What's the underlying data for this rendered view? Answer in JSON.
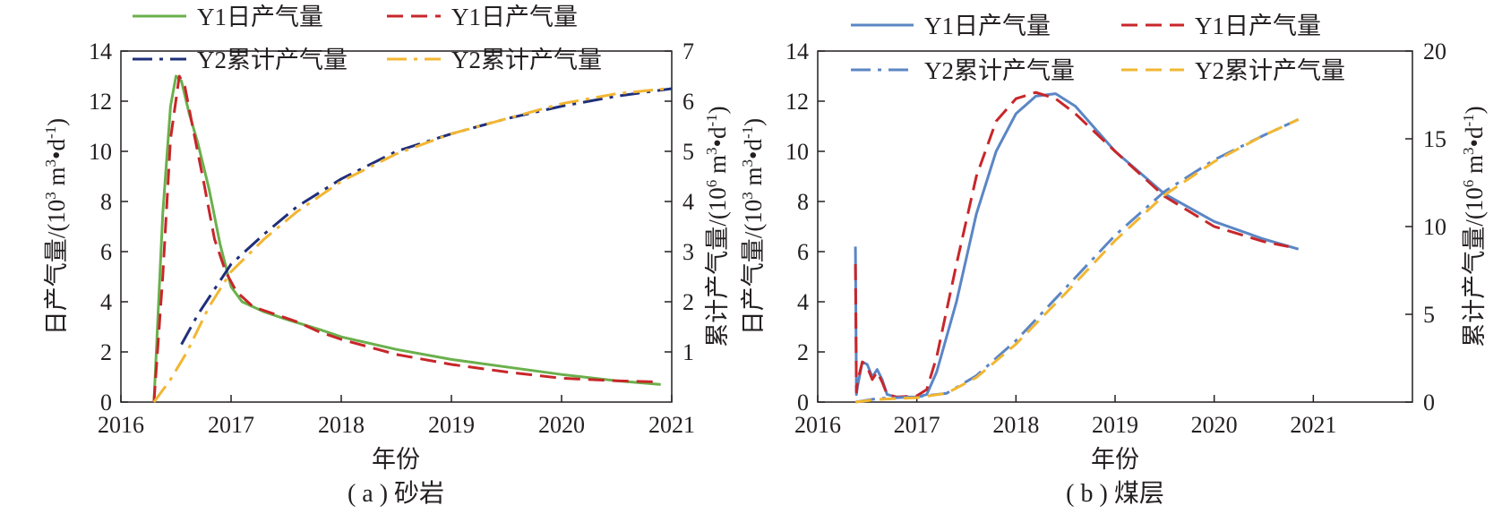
{
  "chart_data": [
    {
      "type": "line",
      "caption": "( a ) 砂岩",
      "xlabel": "年份",
      "ylabel_left_main": "日产气量/(10",
      "ylabel_left_sup": "3",
      "ylabel_left_mid": " m",
      "ylabel_left_sup2": "3",
      "ylabel_left_tail": "•d",
      "ylabel_left_sup3": "-1",
      "ylabel_left_end": ")",
      "ylabel_right_main": "累计产气量/(10",
      "ylabel_right_sup": "6",
      "ylabel_right_mid": " m",
      "ylabel_right_sup2": "3",
      "ylabel_right_tail": "•d",
      "ylabel_right_sup3": "-1",
      "ylabel_right_end": ")",
      "xlim": [
        2016,
        2021
      ],
      "ylim_left": [
        0,
        14
      ],
      "ylim_right": [
        0,
        7
      ],
      "x_ticks": [
        "2016",
        "2017",
        "2018",
        "2019",
        "2020",
        "2021"
      ],
      "y_left_ticks": [
        "0",
        "2",
        "4",
        "6",
        "8",
        "10",
        "12",
        "14"
      ],
      "y_right_ticks": [
        "1",
        "2",
        "3",
        "4",
        "5",
        "6",
        "7"
      ],
      "legend_placement": "top",
      "series": [
        {
          "name": "Y1日产气量",
          "axis": "left",
          "color": "#6ab04c",
          "dash": "solid",
          "x": [
            2016.3,
            2016.38,
            2016.45,
            2016.5,
            2016.55,
            2016.62,
            2016.7,
            2016.8,
            2016.9,
            2017.0,
            2017.1,
            2017.3,
            2017.5,
            2017.8,
            2018.0,
            2018.5,
            2019.0,
            2019.5,
            2020.0,
            2020.5,
            2020.9
          ],
          "y": [
            0,
            7.5,
            11.8,
            13.0,
            12.8,
            11.5,
            10.3,
            8.5,
            6.3,
            4.6,
            4.0,
            3.6,
            3.3,
            2.9,
            2.6,
            2.1,
            1.7,
            1.4,
            1.1,
            0.85,
            0.7
          ]
        },
        {
          "name": "Y1日产气量",
          "axis": "left",
          "color": "#c8262a",
          "dash": "dashed",
          "x": [
            2016.3,
            2016.38,
            2016.45,
            2016.53,
            2016.58,
            2016.65,
            2016.75,
            2016.85,
            2016.95,
            2017.05,
            2017.2,
            2017.4,
            2017.6,
            2017.8,
            2018.0,
            2018.5,
            2019.0,
            2019.5,
            2020.0,
            2020.5,
            2020.9
          ],
          "y": [
            0,
            5.0,
            10.5,
            13.0,
            12.6,
            11.0,
            8.8,
            6.5,
            5.2,
            4.4,
            3.8,
            3.5,
            3.2,
            2.8,
            2.5,
            1.9,
            1.5,
            1.2,
            0.95,
            0.85,
            0.8
          ]
        },
        {
          "name": "Y2累计产气量",
          "axis": "right",
          "color": "#1f2f7a",
          "dash": "dashdot",
          "x": [
            2016.55,
            2016.7,
            2016.85,
            2017.0,
            2017.3,
            2017.6,
            2018.0,
            2018.5,
            2019.0,
            2019.5,
            2020.0,
            2020.5,
            2021.0
          ],
          "y": [
            1.15,
            1.75,
            2.25,
            2.75,
            3.35,
            3.9,
            4.45,
            5.0,
            5.35,
            5.65,
            5.9,
            6.1,
            6.25
          ]
        },
        {
          "name": "Y2累计产气量",
          "axis": "right",
          "color": "#f2b632",
          "dash": "dashdot",
          "x": [
            2016.3,
            2016.45,
            2016.6,
            2016.8,
            2017.0,
            2017.3,
            2017.6,
            2018.0,
            2018.5,
            2019.0,
            2019.5,
            2020.0,
            2020.5,
            2020.95
          ],
          "y": [
            0,
            0.45,
            1.0,
            1.9,
            2.6,
            3.25,
            3.8,
            4.4,
            4.95,
            5.35,
            5.65,
            5.95,
            6.15,
            6.25
          ]
        }
      ]
    },
    {
      "type": "line",
      "caption": "( b ) 煤层",
      "xlabel": "年份",
      "ylabel_left_main": "日产气量/(10",
      "ylabel_left_sup": "3",
      "ylabel_left_mid": " m",
      "ylabel_left_sup2": "3",
      "ylabel_left_tail": "•d",
      "ylabel_left_sup3": "-1",
      "ylabel_left_end": ")",
      "ylabel_right_main": "累计产气量/(10",
      "ylabel_right_sup": "6",
      "ylabel_right_mid": " m",
      "ylabel_right_sup2": "3",
      "ylabel_right_tail": "•d",
      "ylabel_right_sup3": "-1",
      "ylabel_right_end": ")",
      "xlim": [
        2016,
        2022
      ],
      "ylim_left": [
        0,
        14
      ],
      "ylim_right": [
        0,
        20
      ],
      "x_ticks": [
        "2016",
        "2017",
        "2018",
        "2019",
        "2020",
        "2021"
      ],
      "y_left_ticks": [
        "0",
        "2",
        "4",
        "6",
        "8",
        "10",
        "12",
        "14"
      ],
      "y_right_ticks": [
        "0",
        "5",
        "10",
        "15",
        "20"
      ],
      "legend_placement": "top",
      "series": [
        {
          "name": "Y1日产气量",
          "axis": "left",
          "color": "#5b86c5",
          "dash": "solid",
          "x": [
            2016.38,
            2016.39,
            2016.4,
            2016.45,
            2016.5,
            2016.55,
            2016.6,
            2016.65,
            2016.7,
            2016.8,
            2017.0,
            2017.1,
            2017.2,
            2017.4,
            2017.6,
            2017.8,
            2018.0,
            2018.2,
            2018.4,
            2018.6,
            2019.0,
            2019.5,
            2020.0,
            2020.5,
            2020.85
          ],
          "y": [
            6.2,
            0.3,
            0.6,
            1.6,
            1.5,
            1.0,
            1.3,
            0.9,
            0.3,
            0.2,
            0.2,
            0.3,
            1.2,
            4.0,
            7.5,
            10.0,
            11.5,
            12.2,
            12.3,
            11.8,
            10.0,
            8.3,
            7.2,
            6.5,
            6.1
          ]
        },
        {
          "name": "Y1日产气量",
          "axis": "left",
          "color": "#c8262a",
          "dash": "dashed",
          "x": [
            2016.38,
            2016.39,
            2016.4,
            2016.45,
            2016.5,
            2016.55,
            2016.6,
            2016.65,
            2016.7,
            2016.8,
            2017.0,
            2017.1,
            2017.2,
            2017.4,
            2017.6,
            2017.8,
            2018.0,
            2018.2,
            2018.4,
            2018.6,
            2019.0,
            2019.5,
            2020.0,
            2020.5,
            2020.75
          ],
          "y": [
            5.5,
            0.4,
            0.8,
            1.6,
            1.4,
            0.9,
            1.2,
            0.8,
            0.3,
            0.2,
            0.25,
            0.5,
            1.8,
            5.5,
            9.0,
            11.2,
            12.1,
            12.35,
            12.1,
            11.5,
            10.0,
            8.2,
            7.0,
            6.4,
            6.2
          ]
        },
        {
          "name": "Y2累计产气量",
          "axis": "right",
          "color": "#5b86c5",
          "dash": "dashdot",
          "x": [
            2016.38,
            2016.6,
            2017.0,
            2017.3,
            2017.6,
            2018.0,
            2018.5,
            2019.0,
            2019.5,
            2020.0,
            2020.5,
            2020.85
          ],
          "y": [
            0.0,
            0.2,
            0.3,
            0.5,
            1.5,
            3.5,
            6.5,
            9.5,
            12.0,
            13.8,
            15.2,
            16.1
          ]
        },
        {
          "name": "Y2累计产气量",
          "axis": "right",
          "color": "#f2b632",
          "dash": "dashed",
          "x": [
            2016.38,
            2016.6,
            2017.0,
            2017.3,
            2017.6,
            2018.0,
            2018.5,
            2019.0,
            2019.5,
            2020.0,
            2020.5,
            2020.85
          ],
          "y": [
            0.0,
            0.15,
            0.25,
            0.5,
            1.4,
            3.3,
            6.2,
            9.2,
            11.8,
            13.7,
            15.2,
            16.1
          ]
        }
      ]
    }
  ]
}
